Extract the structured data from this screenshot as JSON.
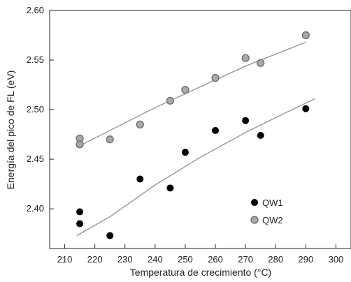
{
  "chart_data": {
    "type": "scatter",
    "title": "",
    "xlabel": "Temperatura de crecimiento (°C)",
    "ylabel": "Energía del pico de FL (eV)",
    "xlim": [
      205,
      305
    ],
    "ylim": [
      2.36,
      2.6
    ],
    "x_ticks": [
      210,
      220,
      230,
      240,
      250,
      260,
      270,
      280,
      290,
      300
    ],
    "y_ticks": [
      2.4,
      2.45,
      2.5,
      2.55,
      2.6
    ],
    "x_tick_labels": [
      "210",
      "220",
      "230",
      "240",
      "250",
      "260",
      "270",
      "280",
      "290",
      "300"
    ],
    "y_tick_labels": [
      "2.40",
      "2.45",
      "2.50",
      "2.55",
      "2.60"
    ],
    "grid": false,
    "legend_position": "bottom-right",
    "series": [
      {
        "name": "QW1",
        "color": "#000000",
        "points": [
          {
            "x": 215,
            "y": 2.397
          },
          {
            "x": 215,
            "y": 2.385
          },
          {
            "x": 225,
            "y": 2.373
          },
          {
            "x": 235,
            "y": 2.43
          },
          {
            "x": 245,
            "y": 2.421
          },
          {
            "x": 250,
            "y": 2.457
          },
          {
            "x": 260,
            "y": 2.479
          },
          {
            "x": 270,
            "y": 2.489
          },
          {
            "x": 275,
            "y": 2.474
          },
          {
            "x": 290,
            "y": 2.501
          }
        ]
      },
      {
        "name": "QW2",
        "color": "#a8a8a8",
        "points": [
          {
            "x": 215,
            "y": 2.471
          },
          {
            "x": 215,
            "y": 2.465
          },
          {
            "x": 225,
            "y": 2.47
          },
          {
            "x": 235,
            "y": 2.485
          },
          {
            "x": 245,
            "y": 2.509
          },
          {
            "x": 250,
            "y": 2.52
          },
          {
            "x": 260,
            "y": 2.532
          },
          {
            "x": 270,
            "y": 2.552
          },
          {
            "x": 275,
            "y": 2.547
          },
          {
            "x": 290,
            "y": 2.575
          }
        ]
      }
    ],
    "fit_curves": [
      {
        "series": "QW1",
        "color": "#909090",
        "points": [
          [
            214,
            2.373
          ],
          [
            225,
            2.392
          ],
          [
            240,
            2.424
          ],
          [
            255,
            2.452
          ],
          [
            270,
            2.477
          ],
          [
            280,
            2.492
          ],
          [
            293,
            2.511
          ]
        ]
      },
      {
        "series": "QW2",
        "color": "#909090",
        "points": [
          [
            214,
            2.462
          ],
          [
            225,
            2.479
          ],
          [
            240,
            2.502
          ],
          [
            255,
            2.523
          ],
          [
            270,
            2.544
          ],
          [
            280,
            2.556
          ],
          [
            290,
            2.568
          ]
        ]
      }
    ]
  }
}
